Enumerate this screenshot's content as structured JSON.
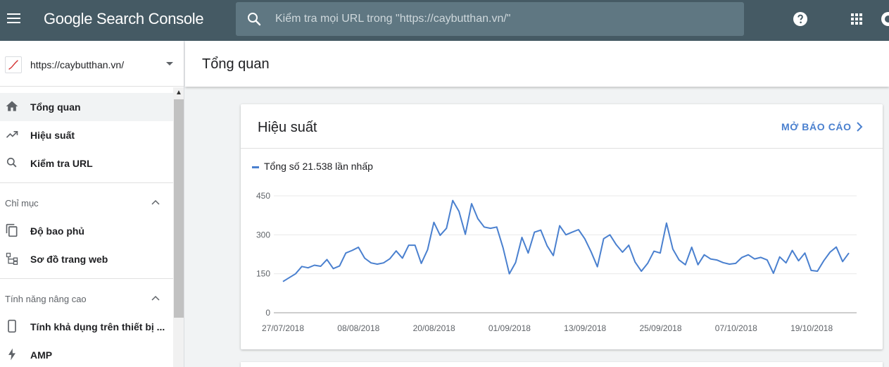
{
  "app": {
    "title": "Google Search Console",
    "search_placeholder": "Kiểm tra mọi URL trong \"https://caybutthan.vn/\""
  },
  "icons": {
    "menu": "menu-icon",
    "search": "search-icon",
    "help": "help-icon",
    "apps": "apps-grid-icon",
    "account": "account-icon"
  },
  "sidebar": {
    "property": "https://caybutthan.vn/",
    "items": [
      {
        "label": "Tổng quan",
        "icon": "home-icon",
        "active": true
      },
      {
        "label": "Hiệu suất",
        "icon": "trending-up-icon"
      },
      {
        "label": "Kiểm tra URL",
        "icon": "search-icon"
      }
    ],
    "section_index": {
      "title": "Chỉ mục",
      "items": [
        {
          "label": "Độ bao phủ",
          "icon": "copy-icon"
        },
        {
          "label": "Sơ đồ trang web",
          "icon": "sitemap-icon"
        }
      ]
    },
    "section_advanced": {
      "title": "Tính năng nâng cao",
      "items": [
        {
          "label": "Tính khả dụng trên thiết bị ...",
          "icon": "phone-icon"
        },
        {
          "label": "AMP",
          "icon": "bolt-icon"
        }
      ]
    }
  },
  "main": {
    "page_title": "Tổng quan",
    "card": {
      "title": "Hiệu suất",
      "open_report": "MỞ BÁO CÁO",
      "legend": "Tổng số 21.538 lần nhấp"
    }
  },
  "colors": {
    "topbar": "#455a64",
    "accent": "#4a80cf"
  },
  "chart_data": {
    "type": "line",
    "series": [
      {
        "name": "Tổng số 21.538 lần nhấp",
        "values": [
          120,
          135,
          150,
          178,
          173,
          183,
          179,
          205,
          170,
          180,
          230,
          240,
          252,
          210,
          192,
          187,
          192,
          208,
          238,
          210,
          260,
          260,
          190,
          243,
          348,
          298,
          325,
          432,
          390,
          302,
          420,
          362,
          330,
          325,
          330,
          250,
          150,
          193,
          290,
          230,
          310,
          318,
          258,
          220,
          335,
          300,
          310,
          320,
          285,
          235,
          177,
          285,
          300,
          262,
          233,
          260,
          195,
          160,
          190,
          237,
          230,
          345,
          245,
          203,
          185,
          252,
          185,
          223,
          207,
          203,
          193,
          187,
          190,
          213,
          223,
          207,
          213,
          203,
          152,
          215,
          192,
          240,
          200,
          230,
          163,
          160,
          200,
          233,
          253,
          197,
          230
        ]
      }
    ],
    "x_labels": [
      "27/07/2018",
      "08/08/2018",
      "20/08/2018",
      "01/09/2018",
      "13/09/2018",
      "25/09/2018",
      "07/10/2018",
      "19/10/2018"
    ],
    "y_ticks": [
      "450",
      "300",
      "150",
      "0"
    ],
    "ylim": [
      0,
      450
    ],
    "grid": true
  }
}
